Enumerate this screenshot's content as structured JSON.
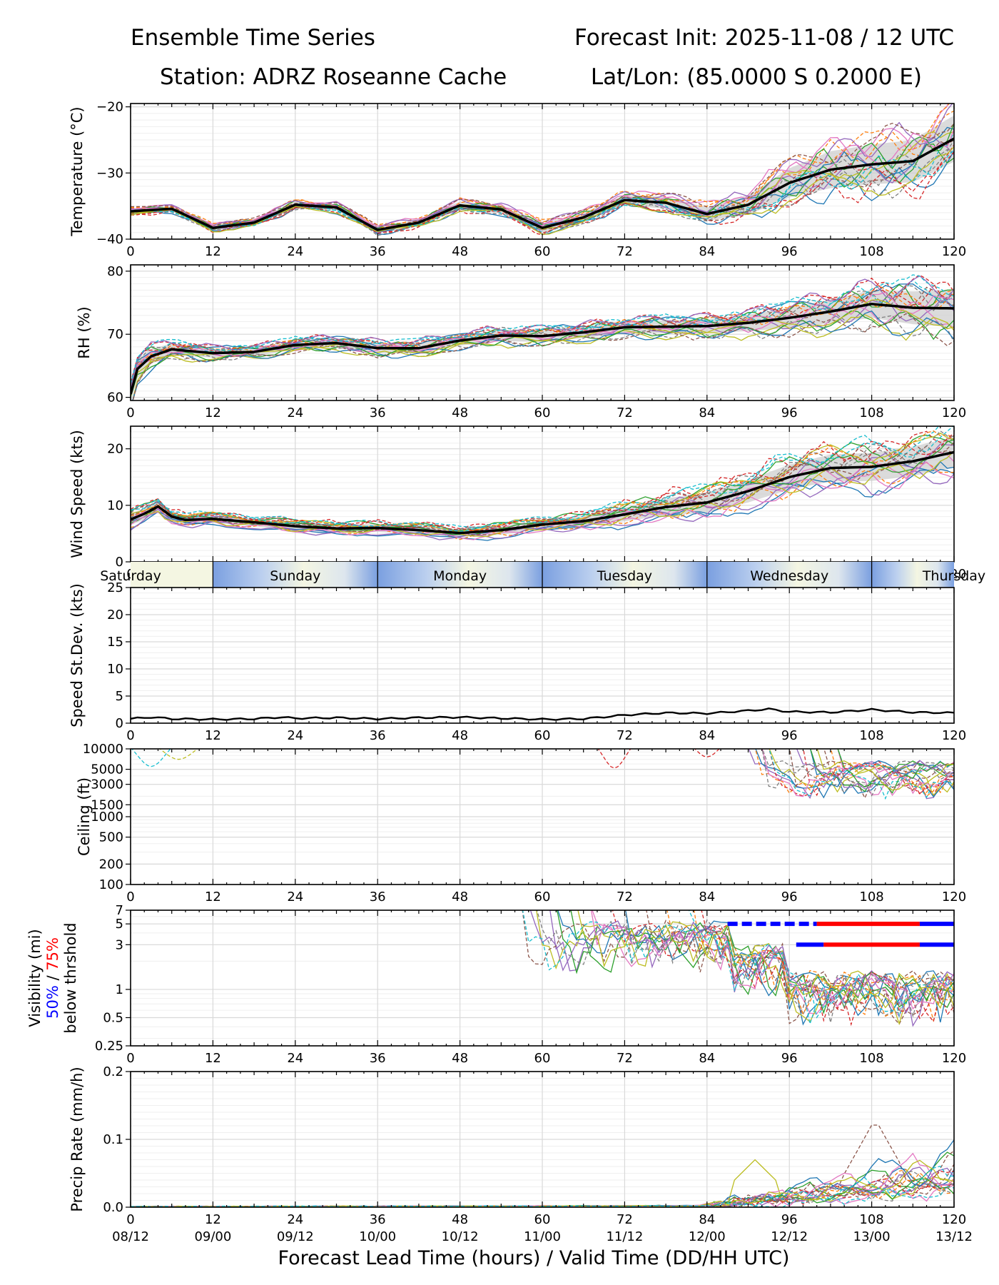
{
  "header": {
    "title_left": "Ensemble Time Series",
    "title_right": "Forecast Init: 2025-11-08 / 12 UTC",
    "station": "Station: ADRZ Roseanne Cache",
    "latlon": "Lat/Lon: (85.0000 S 0.2000 E)"
  },
  "x_axis": {
    "label": "Forecast Lead Time (hours) / Valid Time (DD/HH UTC)",
    "ticks": [
      "0",
      "12",
      "24",
      "36",
      "48",
      "60",
      "72",
      "84",
      "96",
      "108",
      "120"
    ],
    "valid_times": [
      "08/12",
      "09/00",
      "09/12",
      "10/00",
      "10/12",
      "11/00",
      "11/12",
      "12/00",
      "12/12",
      "13/00",
      "13/12"
    ]
  },
  "day_band": [
    "Saturday",
    "Sunday",
    "Monday",
    "Tuesday",
    "Wednesday",
    "Thursday"
  ],
  "colors": {
    "mean": "#000000",
    "spread": "#cccccc",
    "band_blue": "#7a9fe0",
    "band_pale": "#f4f6e2",
    "vis50": "#0000ff",
    "vis75": "#ff0000",
    "members": [
      "#1f77b4",
      "#ff7f0e",
      "#2ca02c",
      "#d62728",
      "#9467bd",
      "#8c564b",
      "#e377c2",
      "#7f7f7f",
      "#bcbd22",
      "#17becf"
    ]
  },
  "chart_data": [
    {
      "type": "line",
      "title": "Temperature",
      "ylabel": "Temperature (°C)",
      "ylim": [
        -40,
        -19.5
      ],
      "yticks": [
        "−20",
        "−30",
        "−40"
      ],
      "ytick_values": [
        -20,
        -30,
        -40
      ],
      "x": [
        0,
        6,
        12,
        18,
        24,
        30,
        36,
        42,
        48,
        54,
        60,
        66,
        72,
        78,
        84,
        90,
        96,
        102,
        108,
        114,
        120
      ],
      "mean": [
        -35.8,
        -35.4,
        -38.3,
        -37.5,
        -34.8,
        -35.2,
        -38.6,
        -37.5,
        -34.9,
        -35.5,
        -38.3,
        -36.7,
        -34.1,
        -34.5,
        -36.2,
        -34.8,
        -31.5,
        -29.5,
        -28.7,
        -28.2,
        -24.8
      ],
      "spread": [
        0.4,
        0.4,
        0.4,
        0.4,
        0.5,
        0.5,
        0.5,
        0.5,
        0.6,
        0.6,
        0.7,
        0.7,
        0.8,
        0.9,
        1.0,
        1.5,
        2.2,
        2.8,
        3.0,
        3.2,
        3.5
      ],
      "members": 20
    },
    {
      "type": "line",
      "title": "RH",
      "ylabel": "RH (%)",
      "ylim": [
        59.5,
        81
      ],
      "yticks": [
        "80",
        "70",
        "60"
      ],
      "ytick_values": [
        80,
        70,
        60
      ],
      "x": [
        0,
        1,
        3,
        6,
        12,
        18,
        24,
        30,
        36,
        42,
        48,
        54,
        60,
        66,
        72,
        78,
        84,
        90,
        96,
        102,
        108,
        114,
        120
      ],
      "mean": [
        60.5,
        64.5,
        66.5,
        67.6,
        67.0,
        67.2,
        68.3,
        68.6,
        67.8,
        67.8,
        69.0,
        69.8,
        69.7,
        70.3,
        71.1,
        71.2,
        71.3,
        71.8,
        72.6,
        73.6,
        74.8,
        74.2,
        74.1
      ],
      "spread": [
        1.5,
        1.5,
        1.2,
        0.9,
        0.7,
        0.7,
        0.7,
        0.7,
        0.8,
        0.8,
        0.8,
        0.9,
        0.9,
        0.9,
        1.0,
        1.0,
        1.1,
        1.3,
        1.6,
        1.9,
        2.2,
        2.6,
        3.0
      ],
      "members": 20
    },
    {
      "type": "line",
      "title": "Wind Speed",
      "ylabel": "Wind Speed (kts)",
      "ylim": [
        0,
        24
      ],
      "yticks": [
        "20",
        "10",
        "0"
      ],
      "ytick_values": [
        20,
        10,
        0
      ],
      "x": [
        0,
        2,
        4,
        6,
        8,
        12,
        18,
        24,
        30,
        36,
        42,
        48,
        54,
        60,
        66,
        72,
        78,
        84,
        90,
        96,
        102,
        108,
        114,
        120
      ],
      "mean": [
        7.5,
        8.5,
        9.8,
        8.0,
        7.4,
        7.6,
        7.0,
        6.3,
        5.9,
        6.0,
        5.6,
        5.1,
        5.6,
        6.6,
        7.2,
        8.4,
        9.7,
        10.5,
        12.5,
        15.0,
        16.6,
        16.8,
        17.8,
        19.4
      ],
      "spread": [
        1.0,
        1.0,
        1.0,
        0.8,
        0.7,
        0.7,
        0.7,
        0.7,
        0.7,
        0.7,
        0.7,
        0.7,
        0.8,
        0.8,
        0.9,
        1.2,
        1.5,
        1.8,
        2.0,
        2.2,
        2.4,
        2.5,
        2.6,
        2.7
      ],
      "members": 20
    },
    {
      "type": "line",
      "title": "Speed St.Dev.",
      "ylabel": "Speed St.Dev. (kts)",
      "ylim": [
        0,
        25
      ],
      "yticks": [
        "25",
        "20",
        "15",
        "10",
        "5",
        "0"
      ],
      "ytick_values": [
        25,
        20,
        15,
        10,
        5,
        0
      ],
      "x": [
        0,
        3,
        6,
        12,
        18,
        22,
        24,
        30,
        36,
        42,
        48,
        54,
        60,
        66,
        72,
        78,
        84,
        90,
        93,
        96,
        102,
        108,
        114,
        120
      ],
      "mean": [
        0.8,
        1.1,
        0.8,
        0.7,
        0.8,
        1.1,
        0.9,
        1.0,
        0.8,
        1.0,
        1.1,
        0.9,
        0.7,
        0.8,
        1.5,
        1.9,
        1.8,
        2.3,
        2.6,
        2.1,
        2.0,
        2.5,
        2.0,
        1.9
      ]
    },
    {
      "type": "line",
      "title": "Ceiling",
      "ylabel": "Ceiling (ft)",
      "scale": "log",
      "ylim": [
        100,
        10000
      ],
      "yticks": [
        "10000",
        "5000",
        "3000",
        "1500",
        "1000",
        "500",
        "200",
        "100"
      ],
      "ytick_values": [
        10000,
        5000,
        3000,
        1500,
        1000,
        500,
        200,
        100
      ],
      "note": "member ceilings mostly above 10000 ft; dropping to 1500-5000 ft after hour 90"
    },
    {
      "type": "line",
      "title": "Visibility",
      "ylabel": "Visibility (mi)",
      "ylabel_50": "50%",
      "ylabel_sep": " / ",
      "ylabel_75": "75%",
      "ylabel_sub": "below thrshold",
      "scale": "log",
      "ylim": [
        0.25,
        7
      ],
      "yticks": [
        "7",
        "5",
        "3",
        "1",
        "0.5",
        "0.25"
      ],
      "ytick_values": [
        7,
        5,
        3,
        1,
        0.5,
        0.25
      ],
      "threshold_bars": [
        {
          "threshold": 5,
          "segments": [
            {
              "from": 87,
              "to": 100,
              "level": "50%"
            },
            {
              "from": 100,
              "to": 115,
              "level": "75%"
            },
            {
              "from": 115,
              "to": 120,
              "level": "50%"
            }
          ]
        },
        {
          "threshold": 3,
          "segments": [
            {
              "from": 97,
              "to": 101,
              "level": "50%"
            },
            {
              "from": 101,
              "to": 115,
              "level": "75%"
            },
            {
              "from": 115,
              "to": 120,
              "level": "50%"
            }
          ]
        }
      ]
    },
    {
      "type": "line",
      "title": "Precip Rate",
      "ylabel": "Precip Rate (mm/h)",
      "ylim": [
        0,
        0.2
      ],
      "yticks": [
        "0.2",
        "0.1",
        "0.0"
      ],
      "ytick_values": [
        0.2,
        0.1,
        0.0
      ],
      "note": "near zero until hour 84; member peaks up to about 0.13 mm/h near hour 109"
    }
  ]
}
